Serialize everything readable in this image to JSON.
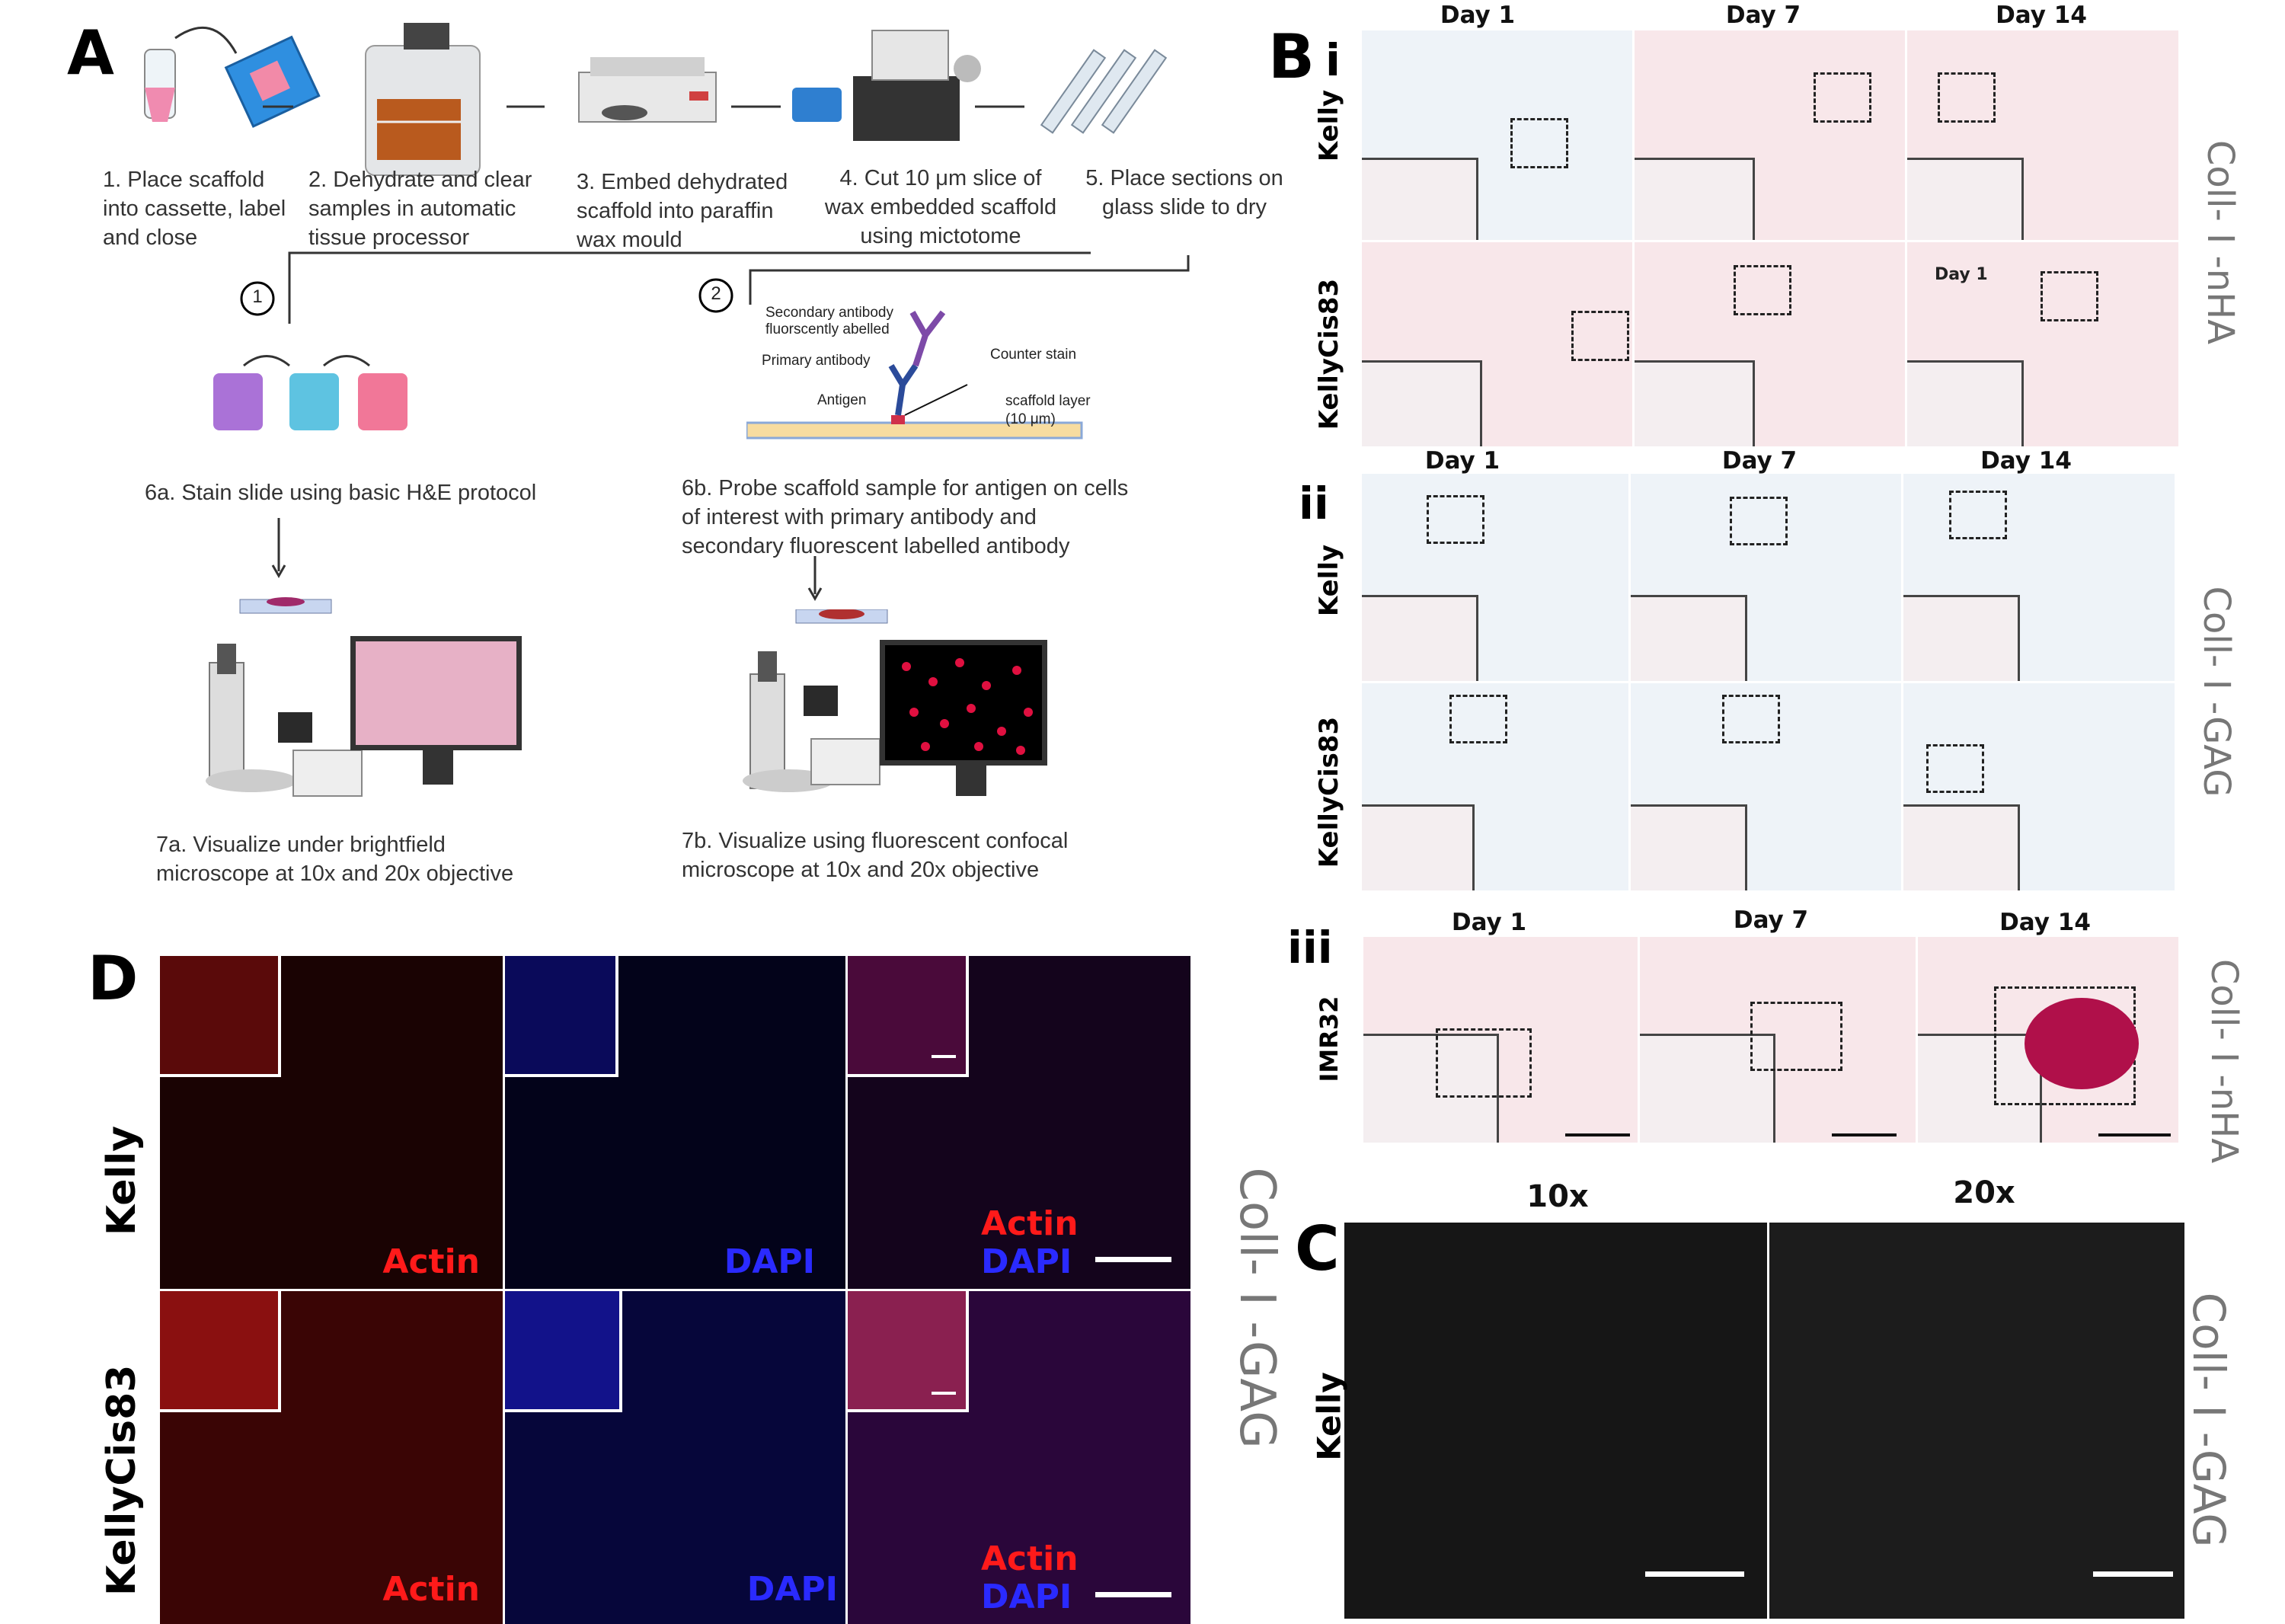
{
  "panels": {
    "a": "A",
    "b": "B",
    "c": "C",
    "d": "D"
  },
  "steps": [
    "1. Place scaffold into cassette, label and close",
    "2. Dehydrate and clear samples in automatic tissue processor",
    "3. Embed dehydrated scaffold into paraffin wax mould",
    "4. Cut 10 μm slice of wax embedded scaffold using mictotome",
    "5. Place sections on glass slide to dry"
  ],
  "route_numbers": [
    "1",
    "2"
  ],
  "step6a": "6a. Stain slide using basic H&E protocol",
  "step6b": "6b. Probe scaffold sample for antigen on cells of interest with primary antibody and secondary fluorescent labelled antibody",
  "step7a": "7a. Visualize under brightfield microscope at 10x and 20x objective",
  "step7b": "7b. Visualize using fluorescent confocal microscope at 10x and 20x objective",
  "antibody_labels": {
    "secondary": "Secondary antibody fluorscently abelled",
    "primary": "Primary antibody",
    "antigen": "Antigen",
    "counter": "Counter stain",
    "scaffold": "scaffold layer (10 μm)"
  },
  "b_sections": [
    "i",
    "ii",
    "iii"
  ],
  "days": [
    "Day 1",
    "Day 7",
    "Day 14"
  ],
  "inner_day": "Day 1",
  "cell_lines": {
    "kelly": "Kelly",
    "kellycis": "KellyCis83",
    "imr": "IMR32"
  },
  "scaffolds": {
    "nha": "Coll- I -nHA",
    "gag": "Coll- I -GAG"
  },
  "magnifications": [
    "10x",
    "20x"
  ],
  "channels": {
    "actin": "Actin",
    "dapi": "DAPI"
  },
  "colors": {
    "actin": "#ff1a1a",
    "dapi": "#2a2aff",
    "he_pink": "#c2185b"
  }
}
